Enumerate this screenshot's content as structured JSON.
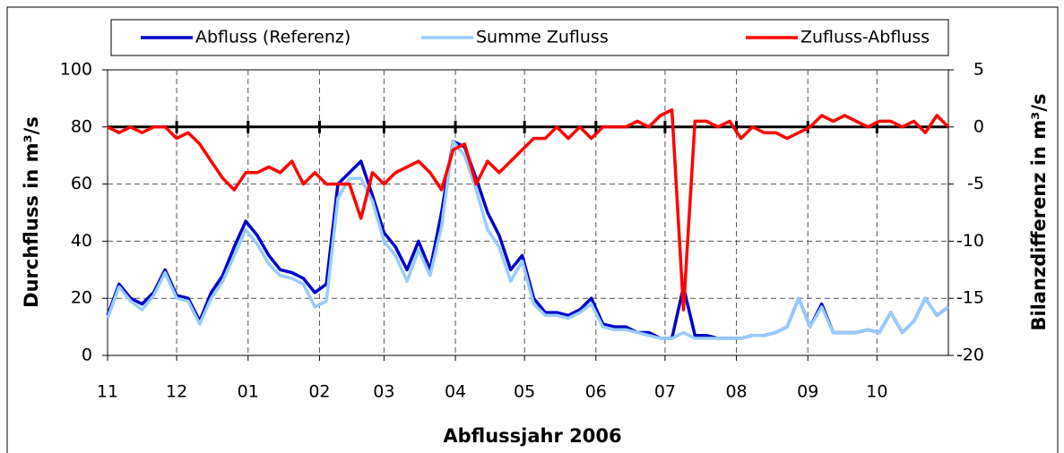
{
  "chart_data": {
    "type": "line",
    "x_title": "Abflussjahr 2006",
    "y_title": "Durchfluss in m³/s",
    "y2_title": "Bilanzdifferenz in m³/s",
    "x": [
      0,
      5,
      10,
      15,
      20,
      25,
      30,
      35,
      40,
      45,
      50,
      55,
      60,
      65,
      70,
      75,
      80,
      85,
      90,
      95,
      100,
      105,
      110,
      115,
      120,
      125,
      130,
      135,
      140,
      145,
      150,
      155,
      160,
      165,
      170,
      175,
      180,
      185,
      190,
      195,
      200,
      205,
      210,
      215,
      220,
      225,
      230,
      235,
      240,
      245,
      250,
      255,
      260,
      265,
      270,
      275,
      280,
      285,
      290,
      295,
      300,
      305,
      310,
      315,
      320,
      325,
      330,
      335,
      340,
      345,
      350,
      355,
      360,
      365
    ],
    "xlim": [
      0,
      365
    ],
    "xticks": [
      {
        "value": 0,
        "label": "11"
      },
      {
        "value": 30,
        "label": "12"
      },
      {
        "value": 61,
        "label": "01"
      },
      {
        "value": 92,
        "label": "02"
      },
      {
        "value": 120,
        "label": "03"
      },
      {
        "value": 151,
        "label": "04"
      },
      {
        "value": 181,
        "label": "05"
      },
      {
        "value": 212,
        "label": "06"
      },
      {
        "value": 242,
        "label": "07"
      },
      {
        "value": 273,
        "label": "08"
      },
      {
        "value": 304,
        "label": "09"
      },
      {
        "value": 334,
        "label": "10"
      }
    ],
    "ylim": [
      0,
      100
    ],
    "yticks": [
      0,
      20,
      40,
      60,
      80,
      100
    ],
    "y2lim": [
      -20,
      5
    ],
    "y2ticks": [
      -20,
      -15,
      -10,
      -5,
      0,
      5
    ],
    "grid": true,
    "series": [
      {
        "name": "Abfluss (Referenz)",
        "color": "#0000cc",
        "values": [
          14,
          25,
          20,
          18,
          22,
          30,
          21,
          20,
          12,
          22,
          28,
          38,
          47,
          42,
          35,
          30,
          29,
          27,
          22,
          25,
          60,
          64,
          68,
          56,
          43,
          38,
          30,
          40,
          30,
          50,
          75,
          73,
          62,
          50,
          42,
          30,
          35,
          20,
          15,
          15,
          14,
          16,
          20,
          11,
          10,
          10,
          8,
          8,
          6,
          6,
          24,
          7,
          7,
          6,
          6,
          6,
          7,
          7,
          8,
          10,
          20,
          10,
          18,
          8,
          8,
          8,
          9,
          8,
          15,
          8,
          12,
          20,
          14,
          17
        ]
      },
      {
        "name": "Summe Zufluss",
        "color": "#99ccff",
        "values": [
          13,
          24,
          19,
          16,
          21,
          29,
          20,
          19,
          11,
          20,
          26,
          35,
          44,
          39,
          32,
          28,
          27,
          25,
          17,
          19,
          55,
          62,
          62,
          54,
          40,
          35,
          26,
          37,
          28,
          45,
          75,
          70,
          58,
          44,
          38,
          26,
          33,
          18,
          14,
          14,
          13,
          15,
          18,
          10,
          9,
          9,
          8,
          7,
          6,
          6,
          8,
          6,
          6,
          6,
          6,
          6,
          7,
          7,
          8,
          10,
          20,
          10,
          17,
          8,
          8,
          8,
          9,
          8,
          15,
          8,
          12,
          20,
          14,
          17
        ]
      },
      {
        "name": "Zufluss-Abfluss",
        "color": "#ff0000",
        "axis": "y2",
        "values": [
          0,
          -0.5,
          0,
          -0.5,
          0,
          0,
          -1,
          -0.5,
          -1.5,
          -3,
          -4.5,
          -5.5,
          -4,
          -4,
          -3.5,
          -4,
          -3,
          -5,
          -4,
          -5,
          -5,
          -5,
          -8,
          -4,
          -5,
          -4,
          -3.5,
          -3,
          -4,
          -5.5,
          -2,
          -1.5,
          -5,
          -3,
          -4,
          -3,
          -2,
          -1,
          -1,
          0,
          -1,
          0,
          -1,
          0,
          0,
          0,
          0.5,
          0,
          1,
          1.5,
          -16,
          0.5,
          0.5,
          0,
          0.5,
          -1,
          0,
          -0.5,
          -0.5,
          -1,
          -0.5,
          0,
          1,
          0.5,
          1,
          0.5,
          0,
          0.5,
          0.5,
          0,
          0.5,
          -0.5,
          1,
          0
        ]
      }
    ]
  }
}
